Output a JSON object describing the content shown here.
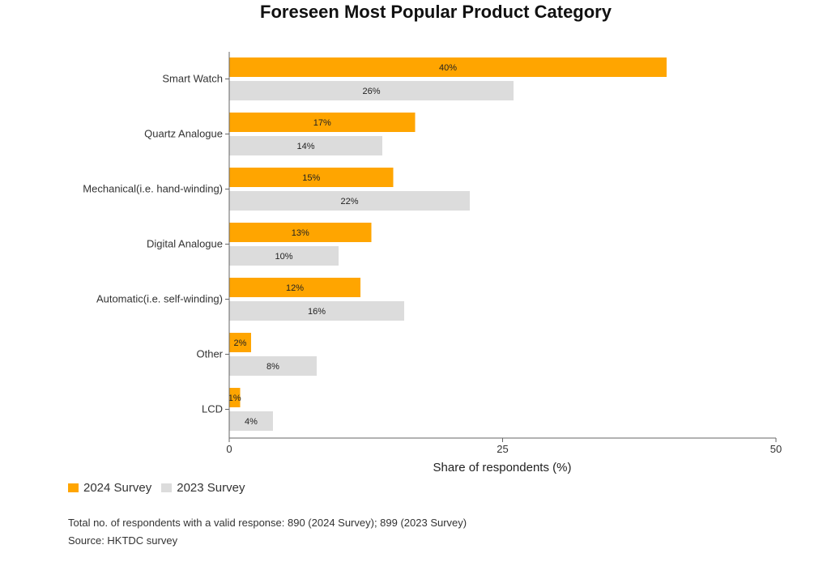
{
  "chart_data": {
    "type": "bar",
    "orientation": "horizontal",
    "title": "Foreseen Most Popular Product Category",
    "categories": [
      "Smart Watch",
      "Quartz Analogue",
      "Mechanical(i.e. hand-winding)",
      "Digital Analogue",
      "Automatic(i.e. self-winding)",
      "Other",
      "LCD"
    ],
    "series": [
      {
        "name": "2024 Survey",
        "color": "#ffa500",
        "values": [
          40,
          17,
          15,
          13,
          12,
          2,
          1
        ]
      },
      {
        "name": "2023 Survey",
        "color": "#dcdcdc",
        "values": [
          26,
          14,
          22,
          10,
          16,
          8,
          4
        ]
      }
    ],
    "value_suffix": "%",
    "xlabel": "Share of respondents (%)",
    "xlim": [
      0,
      50
    ],
    "xticks": [
      0,
      25,
      50
    ],
    "legend_position": "bottom-left"
  },
  "notes": {
    "respondents": "Total no. of respondents with a valid response: 890 (2024 Survey); 899 (2023 Survey)",
    "source": "Source: HKTDC survey"
  }
}
